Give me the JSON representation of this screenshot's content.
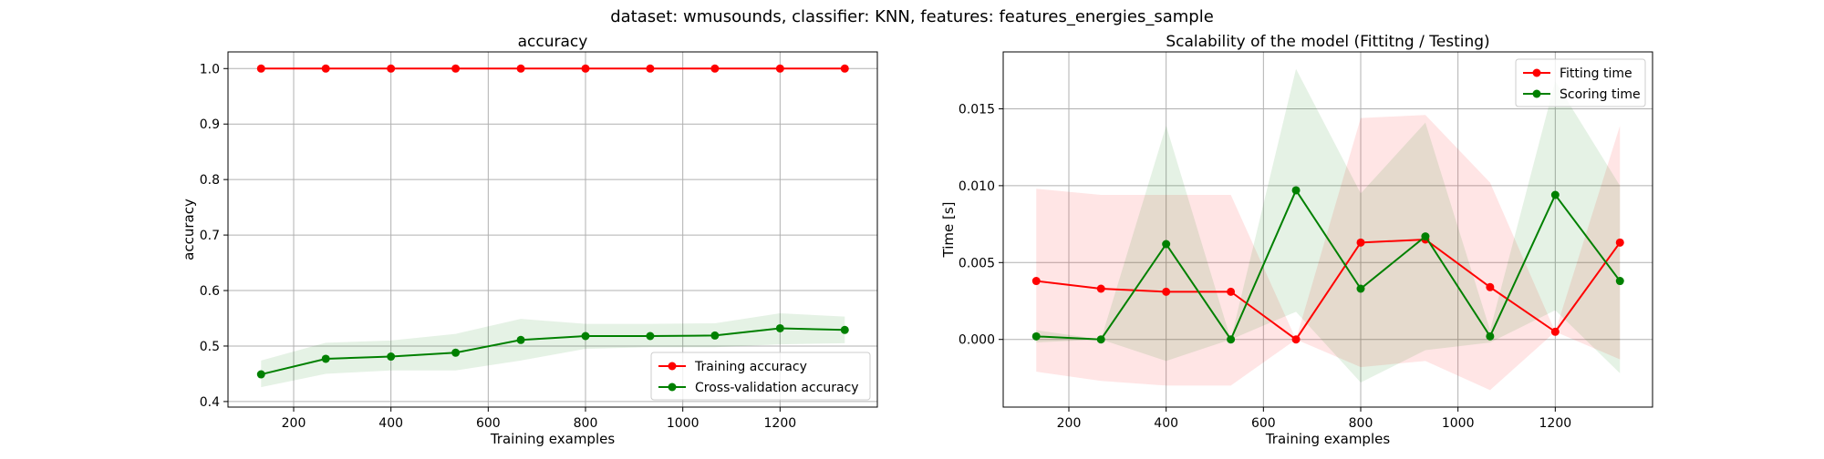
{
  "figure": {
    "suptitle": "dataset: wmusounds, classifier: KNN, features: features_energies_sample"
  },
  "colors": {
    "train": "#ff0000",
    "test": "#008000",
    "grid": "#b0b0b0",
    "axis": "#000000"
  },
  "chart_data": [
    {
      "type": "line",
      "title": "accuracy",
      "xlabel": "Training examples",
      "ylabel": "accuracy",
      "xlim": [
        65,
        1400
      ],
      "ylim": [
        0.39,
        1.03
      ],
      "xticks": [
        200,
        400,
        600,
        800,
        1000,
        1200
      ],
      "yticks": [
        0.4,
        0.5,
        0.6,
        0.7,
        0.8,
        0.9,
        1.0
      ],
      "grid": true,
      "legend_position": "lower right",
      "x": [
        133,
        266,
        400,
        533,
        667,
        800,
        933,
        1066,
        1200,
        1333
      ],
      "series": [
        {
          "name": "Training accuracy",
          "color": "train",
          "values": [
            1.0,
            1.0,
            1.0,
            1.0,
            1.0,
            1.0,
            1.0,
            1.0,
            1.0,
            1.0
          ],
          "band_low": [
            1.0,
            1.0,
            1.0,
            1.0,
            1.0,
            1.0,
            1.0,
            1.0,
            1.0,
            1.0
          ],
          "band_high": [
            1.0,
            1.0,
            1.0,
            1.0,
            1.0,
            1.0,
            1.0,
            1.0,
            1.0,
            1.0
          ]
        },
        {
          "name": "Cross-validation accuracy",
          "color": "test",
          "values": [
            0.449,
            0.477,
            0.481,
            0.488,
            0.511,
            0.518,
            0.518,
            0.519,
            0.532,
            0.529
          ],
          "band_low": [
            0.426,
            0.45,
            0.456,
            0.456,
            0.474,
            0.495,
            0.498,
            0.498,
            0.503,
            0.505
          ],
          "band_high": [
            0.474,
            0.506,
            0.51,
            0.522,
            0.549,
            0.54,
            0.54,
            0.541,
            0.559,
            0.553
          ]
        }
      ]
    },
    {
      "type": "line",
      "title": "Scalability of the model (Fittitng / Testing)",
      "xlabel": "Training examples",
      "ylabel": "Time [s]",
      "xlim": [
        65,
        1400
      ],
      "ylim": [
        -0.0044,
        0.0187
      ],
      "xticks": [
        200,
        400,
        600,
        800,
        1000,
        1200
      ],
      "yticks": [
        0.0,
        0.005,
        0.01,
        0.015
      ],
      "ytick_labels": [
        "0.000",
        "0.005",
        "0.010",
        "0.015"
      ],
      "grid": true,
      "legend_position": "upper right",
      "x": [
        133,
        266,
        400,
        533,
        667,
        800,
        933,
        1066,
        1200,
        1333
      ],
      "series": [
        {
          "name": "Fitting time",
          "color": "train",
          "values": [
            0.0038,
            0.0033,
            0.0031,
            0.0031,
            0.0,
            0.0063,
            0.0065,
            0.0034,
            0.0005,
            0.0063
          ],
          "band_low": [
            -0.0021,
            -0.0027,
            -0.003,
            -0.003,
            0.0,
            -0.0018,
            -0.0014,
            -0.0033,
            0.0005,
            -0.0013
          ],
          "band_high": [
            0.0098,
            0.0094,
            0.0094,
            0.0094,
            0.0,
            0.0144,
            0.0146,
            0.0102,
            0.0005,
            0.0139
          ]
        },
        {
          "name": "Scoring time",
          "color": "test",
          "values": [
            0.0002,
            0.0,
            0.0062,
            0.0,
            0.0097,
            0.0033,
            0.0067,
            0.0002,
            0.0094,
            0.0038
          ],
          "band_low": [
            -0.0002,
            0.0,
            -0.0014,
            0.0,
            0.0018,
            -0.0028,
            -0.0007,
            -0.0002,
            0.0019,
            -0.0022
          ],
          "band_high": [
            0.0006,
            0.0,
            0.0139,
            0.0,
            0.0176,
            0.0095,
            0.0141,
            0.0006,
            0.0168,
            0.01
          ]
        }
      ]
    }
  ]
}
